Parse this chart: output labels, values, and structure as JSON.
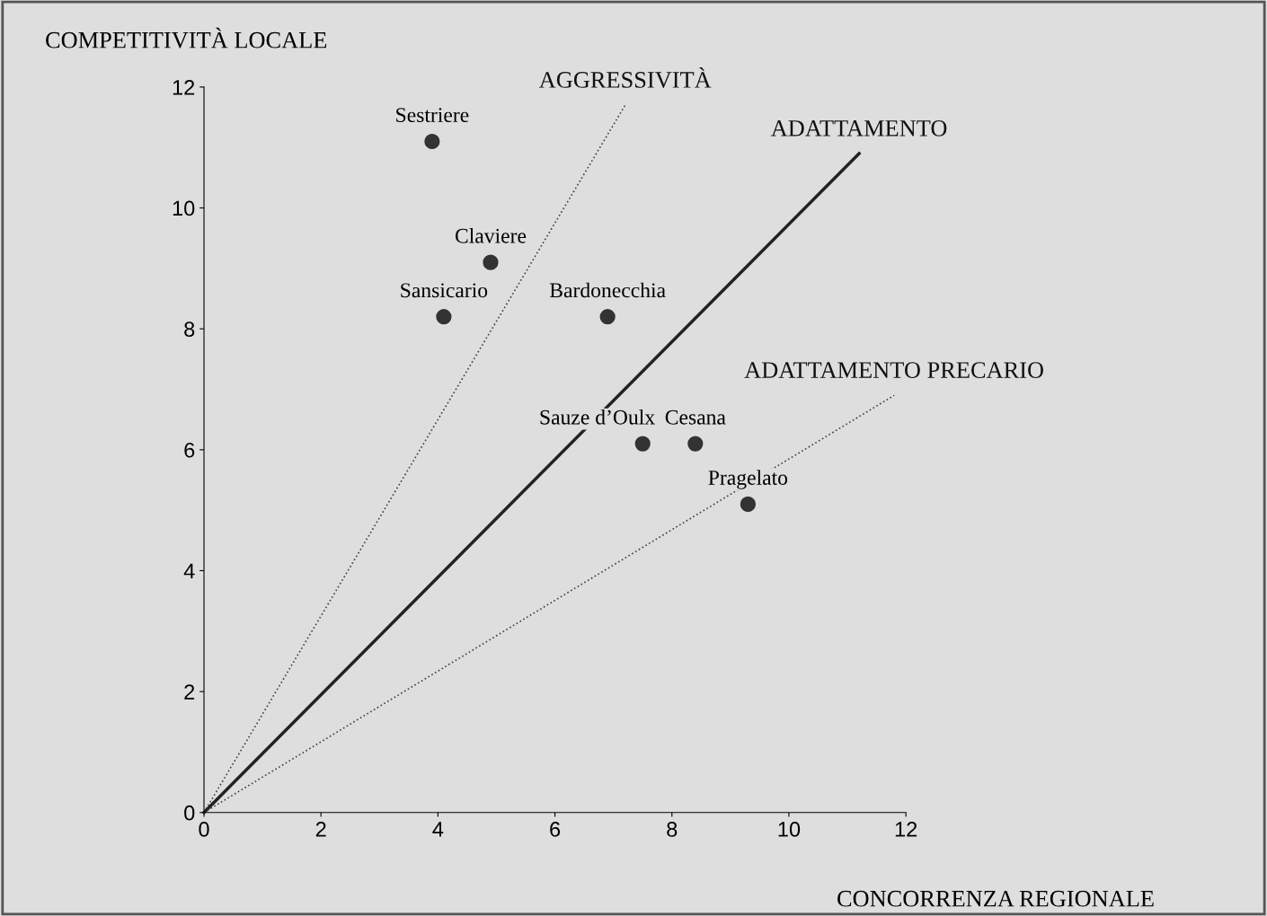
{
  "chart_data": {
    "type": "line",
    "xlabel": "CONCORRENZA REGIONALE",
    "ylabel": "COMPETITIVITÀ LOCALE",
    "xlim": [
      0,
      12
    ],
    "ylim": [
      0,
      12
    ],
    "xticks": [
      0,
      2,
      4,
      6,
      8,
      10,
      12
    ],
    "yticks": [
      0,
      2,
      4,
      6,
      8,
      10,
      12
    ],
    "grid": false,
    "legend": false,
    "series": [
      {
        "type": "scatter",
        "marker": "circle",
        "color": "#333333",
        "x": [
          3.9,
          4.9,
          4.1,
          6.9,
          7.5,
          8.4,
          9.3
        ],
        "values": [
          11.1,
          9.1,
          8.2,
          8.2,
          6.1,
          6.1,
          5.1
        ]
      },
      {
        "name": "AGGRESSIVITÀ",
        "color": "#444444",
        "line_style": "dotted",
        "x": [
          0,
          7.2
        ],
        "values": [
          0,
          11.7
        ]
      },
      {
        "name": "ADATTAMENTO",
        "color": "#222222",
        "line_style": "solid",
        "x": [
          0,
          11.2
        ],
        "values": [
          0,
          10.9
        ]
      },
      {
        "name": "ADATTAMENTO PRECARIO",
        "color": "#444444",
        "line_style": "dotted",
        "x": [
          0,
          11.8
        ],
        "values": [
          0,
          6.9
        ]
      }
    ],
    "annotations": [
      {
        "text": "Sestriere",
        "x": 3.9,
        "y": 11.1
      },
      {
        "text": "Claviere",
        "x": 4.9,
        "y": 9.1
      },
      {
        "text": "Sansicario",
        "x": 4.1,
        "y": 8.2
      },
      {
        "text": "Bardonecchia",
        "x": 6.9,
        "y": 8.2
      },
      {
        "text": "Sauze d’Oulx",
        "x": 7.5,
        "y": 6.1
      },
      {
        "text": "Cesana",
        "x": 8.4,
        "y": 6.1
      },
      {
        "text": "Pragelato",
        "x": 9.3,
        "y": 5.1
      }
    ]
  }
}
